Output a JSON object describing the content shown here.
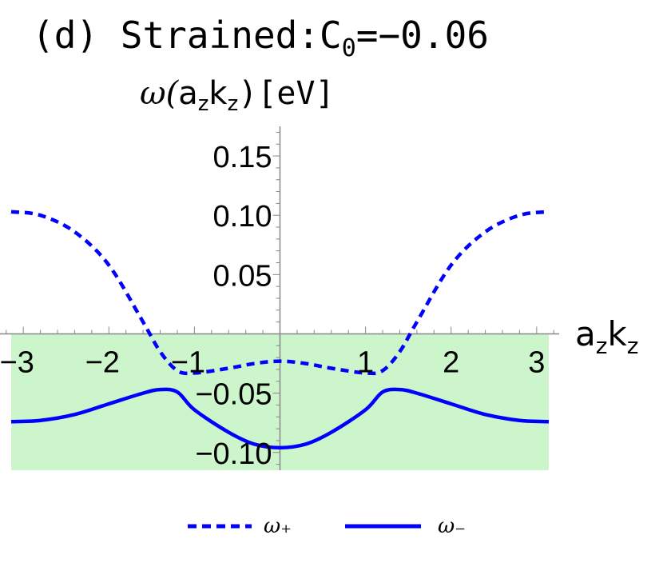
{
  "chart_data": {
    "type": "line",
    "title": "(d) Strained:C",
    "title_subscript": "0",
    "title_suffix": "=−0.06",
    "ylabel_prefix": "ω(",
    "ylabel_a": "a",
    "ylabel_k": "k",
    "ylabel_suffix": ")[eV]",
    "xlabel_a": "a",
    "xlabel_k": "k",
    "subscript_z": "z",
    "xlim": [
      -3.14159,
      3.14159
    ],
    "ylim": [
      -0.115,
      0.175
    ],
    "x_ticks": [
      -3,
      -2,
      -1,
      1,
      2,
      3
    ],
    "x_tick_labels": [
      "−3",
      "−2",
      "−1",
      "1",
      "2",
      "3"
    ],
    "y_ticks": [
      0.15,
      0.1,
      0.05,
      -0.05,
      -0.1
    ],
    "y_tick_labels": [
      "0.15",
      "0.10",
      "0.05",
      "−0.05",
      "−0.10"
    ],
    "grid": false,
    "shaded_region": {
      "x": [
        -3.14159,
        3.14159
      ],
      "y": [
        -0.115,
        0
      ],
      "color": "#ccf5cc"
    },
    "x": [
      -3.14159,
      -2.8,
      -2.4,
      -2.0,
      -1.6,
      -1.4,
      -1.2,
      -1.0,
      -0.6,
      -0.3,
      0.0,
      0.3,
      0.6,
      1.0,
      1.2,
      1.4,
      1.6,
      2.0,
      2.4,
      2.8,
      3.14159
    ],
    "series": [
      {
        "name": "ω₊",
        "style": "dashed",
        "color": "#0000ff",
        "values": [
          0.103,
          0.1,
          0.086,
          0.058,
          0.01,
          -0.015,
          -0.031,
          -0.033,
          -0.029,
          -0.025,
          -0.023,
          -0.025,
          -0.029,
          -0.033,
          -0.031,
          -0.015,
          0.01,
          0.058,
          0.086,
          0.1,
          0.103
        ]
      },
      {
        "name": "ω₋",
        "style": "solid",
        "color": "#0000ff",
        "values": [
          -0.074,
          -0.073,
          -0.068,
          -0.059,
          -0.05,
          -0.047,
          -0.049,
          -0.064,
          -0.083,
          -0.093,
          -0.096,
          -0.093,
          -0.083,
          -0.064,
          -0.049,
          -0.047,
          -0.05,
          -0.059,
          -0.068,
          -0.073,
          -0.074
        ]
      }
    ],
    "legend": {
      "position": "bottom-center",
      "entries": [
        "ω₊",
        "ω₋"
      ]
    }
  }
}
